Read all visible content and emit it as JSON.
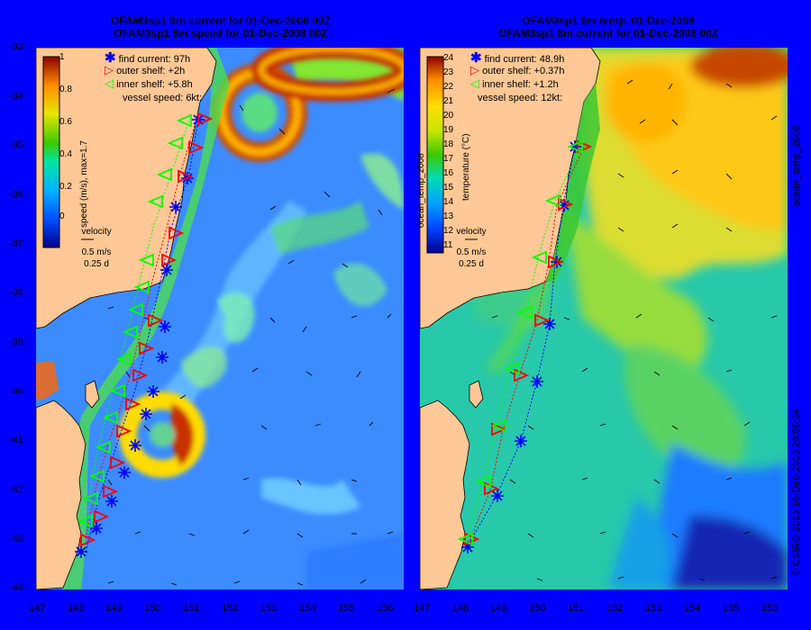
{
  "left_panel": {
    "title_line1": "OFAM3sp1 8m current for 01-Dec-2008 00Z",
    "title_line2": "OFAM3sp1 8m speed for 01-Dec-2008 00Z",
    "legend": {
      "find": "find current: 97h",
      "outer": "outer shelf: +2h",
      "inner": "inner shelf: +5.8h",
      "vessel": "vessel speed: 6kt:"
    },
    "colorbar_label": "speed (m/s), max=1.7",
    "colorbar_ticks": [
      "1",
      "0.8",
      "0.6",
      "0.4",
      "0.2",
      "0"
    ],
    "velocity_key": {
      "title": "velocity",
      "speed": "0.5 m/s",
      "time": "0.25 d"
    },
    "x_ticks": [
      "147",
      "148",
      "149",
      "150",
      "151",
      "152",
      "153",
      "154",
      "155",
      "156"
    ],
    "colors": {
      "eddy": "#c83200",
      "background": "#3c8cff",
      "land": "#ffc896"
    }
  },
  "right_panel": {
    "title_line1": "OFAM3sp1 8m temp. 01-Dec-2008",
    "title_line2": "OFAM3sp1 8m current for 01-Dec-2008 00Z",
    "legend": {
      "find": "find current: 48.9h",
      "outer": "outer shelf: +0.37h",
      "inner": "inner shelf: +1.2h",
      "vessel": "vessel speed: 12kt:"
    },
    "colorbar_label": "temperature (°C)",
    "colorbar_ticks": [
      "24",
      "23",
      "22",
      "21",
      "20",
      "19",
      "18",
      "17",
      "16",
      "15",
      "14",
      "13",
      "12",
      "11"
    ],
    "colorbar_side_label": "ocean_temp_2008",
    "velocity_key": {
      "title": "velocity",
      "speed": "0.5 m/s",
      "time": "0.25 d"
    },
    "x_ticks": [
      "147",
      "148",
      "149",
      "150",
      "151",
      "152",
      "153",
      "154",
      "155",
      "156"
    ],
    "colors": {
      "warm": "#ffb400",
      "cool": "#0040c8",
      "land": "#ffc896"
    }
  },
  "y_ticks": [
    "-33",
    "-34",
    "-35",
    "-36",
    "-37",
    "-38",
    "-39",
    "-40",
    "-41",
    "-42",
    "-43",
    "-44"
  ],
  "right_side_label": "ocean_temp_2008",
  "copyright": "© CSIRO 2013  16-Dec-2013 23:55:34",
  "marker_colors": {
    "find": "#0000ff",
    "outer": "#ff0000",
    "inner": "#00ff00"
  }
}
